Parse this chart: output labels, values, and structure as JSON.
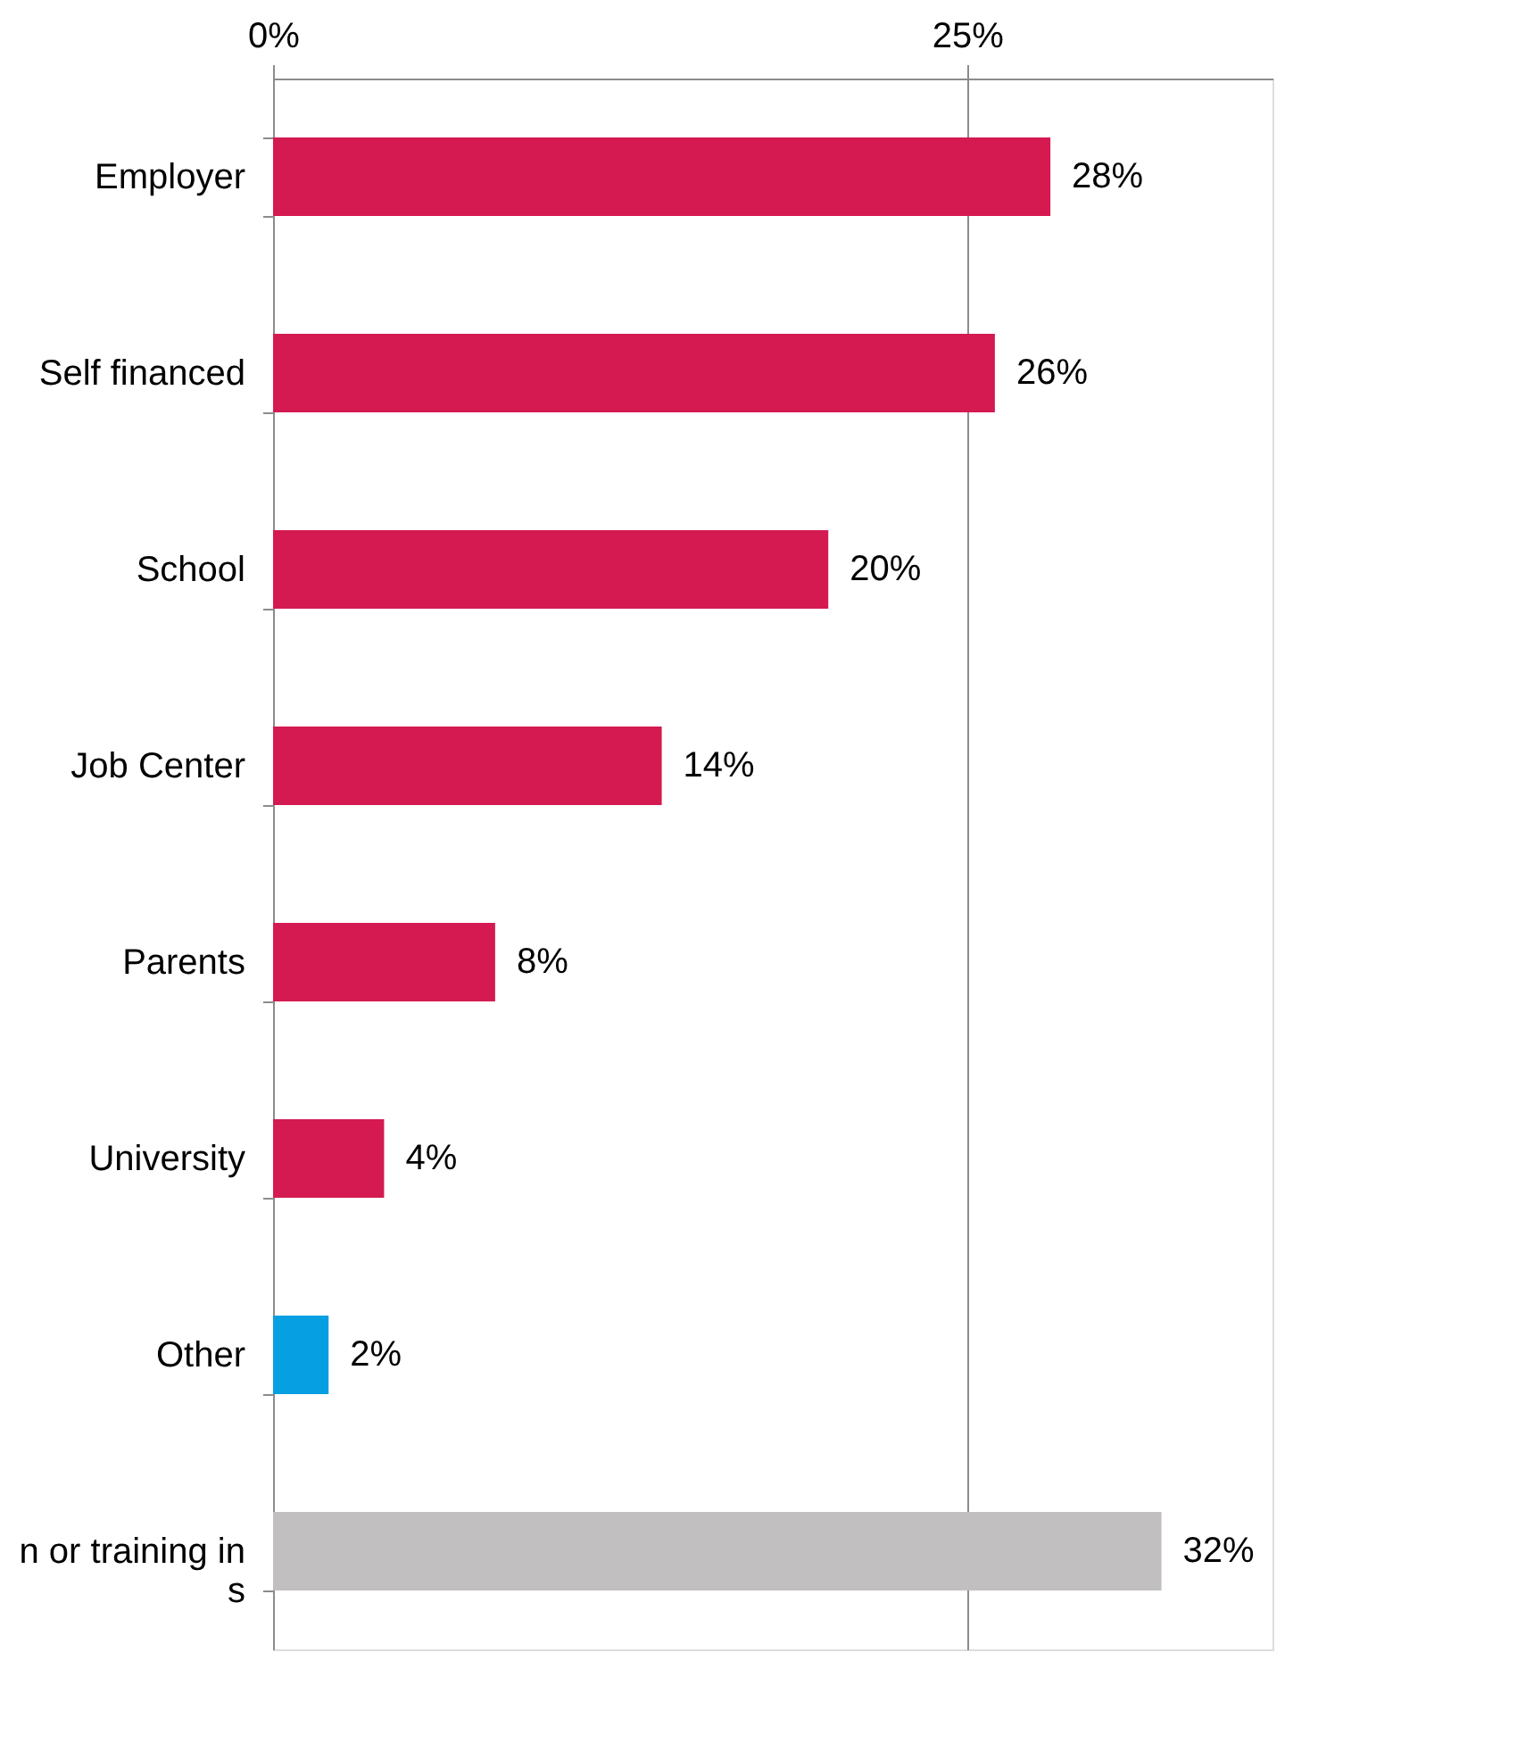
{
  "chart_data": {
    "type": "bar",
    "orientation": "horizontal",
    "categories": [
      "Employer",
      "Self financed",
      "School",
      "Job Center",
      "Parents",
      "University",
      "Other",
      "n or training in\ns"
    ],
    "values": [
      28,
      26,
      20,
      14,
      8,
      4,
      2,
      32
    ],
    "colors": [
      "#d41a51",
      "#d41a51",
      "#d41a51",
      "#d41a51",
      "#d41a51",
      "#d41a51",
      "#069fe2",
      "#c1bfc0"
    ],
    "value_labels": [
      "28%",
      "26%",
      "20%",
      "14%",
      "8%",
      "4%",
      "2%",
      "32%"
    ],
    "xlim": [
      0,
      36
    ],
    "xticks": [
      {
        "value": 0,
        "label": "0%"
      },
      {
        "value": 25,
        "label": "25%"
      }
    ],
    "grid": "x"
  }
}
